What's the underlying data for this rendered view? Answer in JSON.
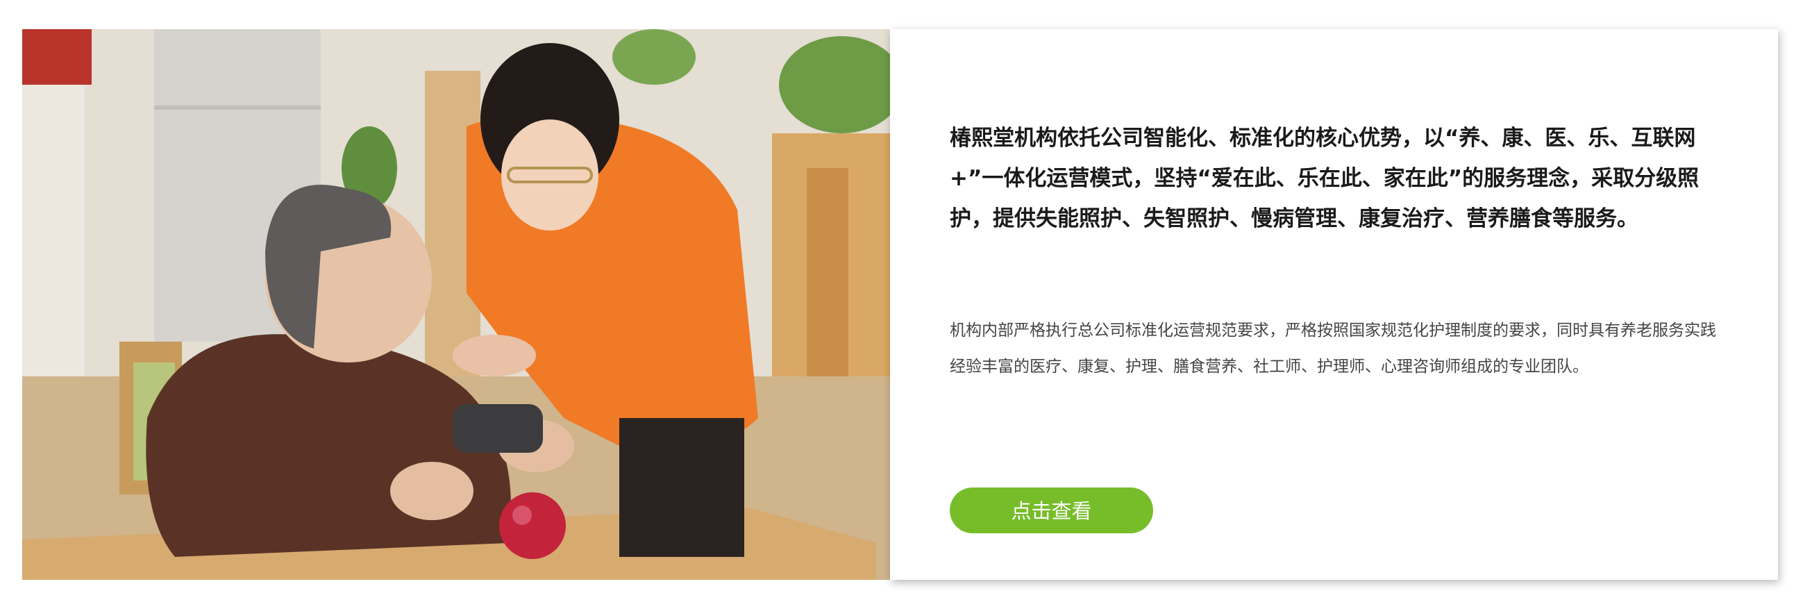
{
  "feature": {
    "headline": "椿熙堂机构依托公司智能化、标准化的核心优势，以“养、康、医、乐、互联网+”一体化运营模式，坚持“爱在此、乐在此、家在此”的服务理念，采取分级照护，提供失能照护、失智照护、慢病管理、康复治疗、营养膳食等服务。",
    "body": "机构内部严格执行总公司标准化运营规范要求，严格按照国家规范化护理制度的要求，同时具有养老服务实践经验丰富的医疗、康复、护理、膳食营养、社工师、护理师、心理咨询师组成的专业团队。",
    "cta_label": "点击查看"
  },
  "colors": {
    "accent": "#77bd2a",
    "headline": "#1a1a1a",
    "body": "#444444"
  }
}
